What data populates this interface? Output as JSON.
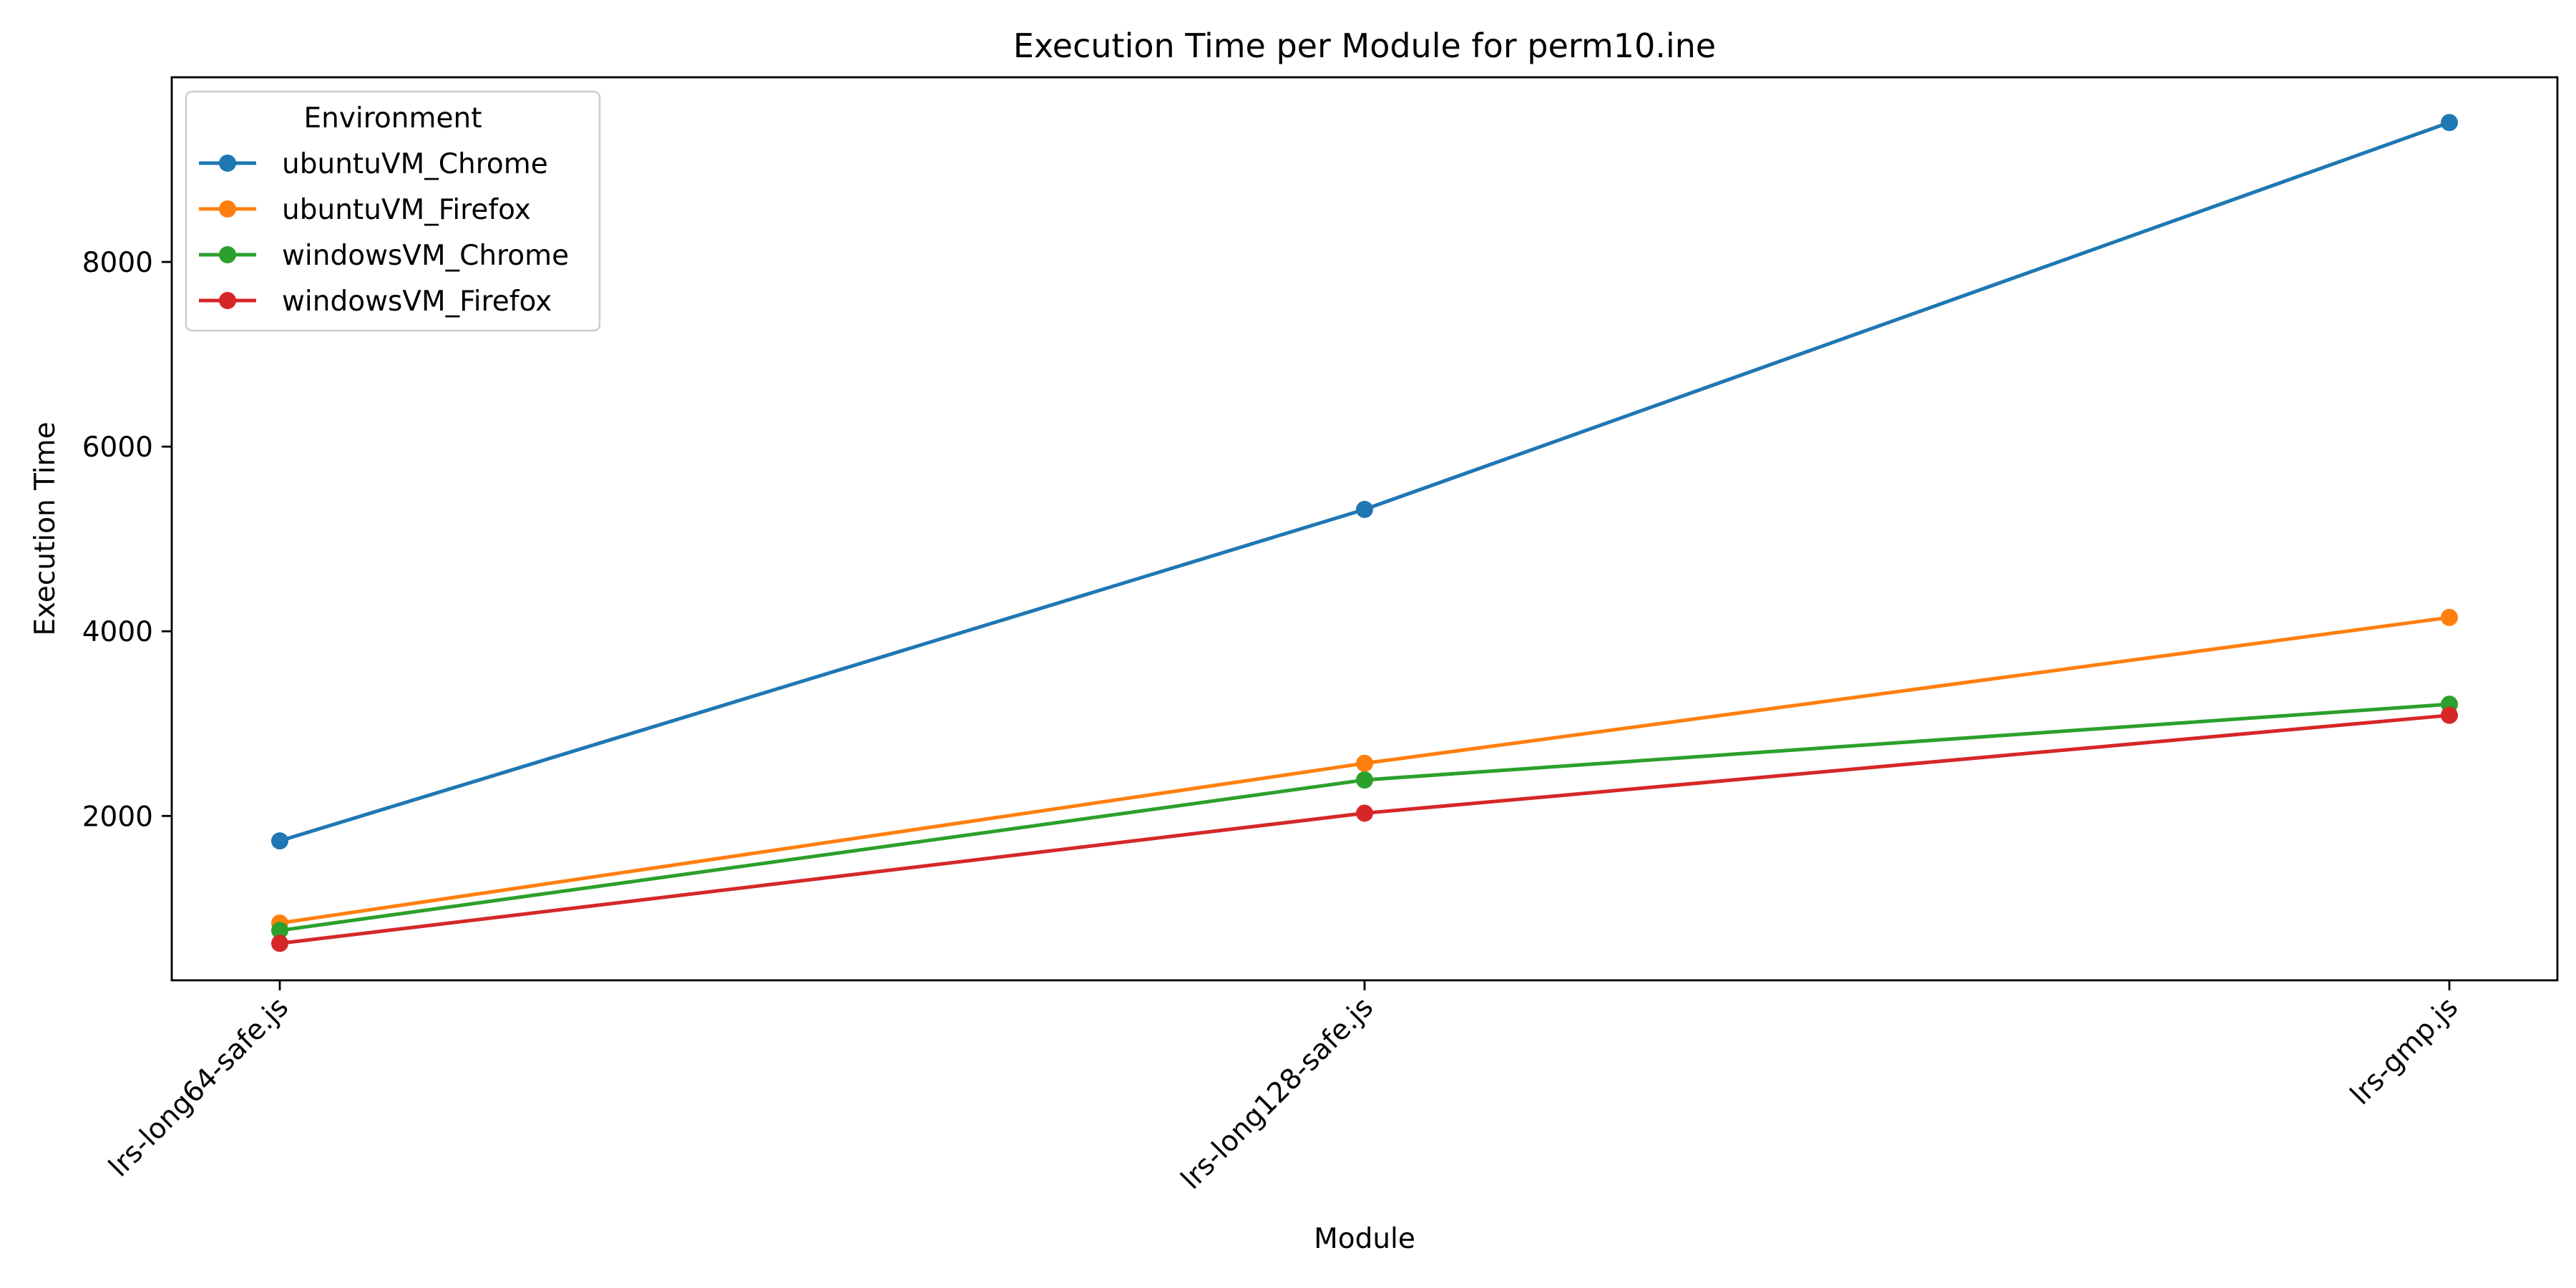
{
  "chart_data": {
    "type": "line",
    "title": "Execution Time per Module for perm10.ine",
    "xlabel": "Module",
    "ylabel": "Execution Time",
    "categories": [
      "lrs-long64-safe.js",
      "lrs-long128-safe.js",
      "lrs-gmp.js"
    ],
    "yticks": [
      2000,
      4000,
      6000,
      8000
    ],
    "ylim": [
      220,
      10000
    ],
    "grid": false,
    "legend": {
      "title": "Environment",
      "placement": "top-left"
    },
    "series": [
      {
        "name": "ubuntuVM_Chrome",
        "color": "#1f77b4",
        "values": [
          1730,
          5320,
          9510
        ]
      },
      {
        "name": "ubuntuVM_Firefox",
        "color": "#ff7f0e",
        "values": [
          840,
          2570,
          4150
        ]
      },
      {
        "name": "windowsVM_Chrome",
        "color": "#2ca02c",
        "values": [
          760,
          2390,
          3210
        ]
      },
      {
        "name": "windowsVM_Firefox",
        "color": "#d62728",
        "values": [
          620,
          2030,
          3090
        ]
      }
    ]
  }
}
